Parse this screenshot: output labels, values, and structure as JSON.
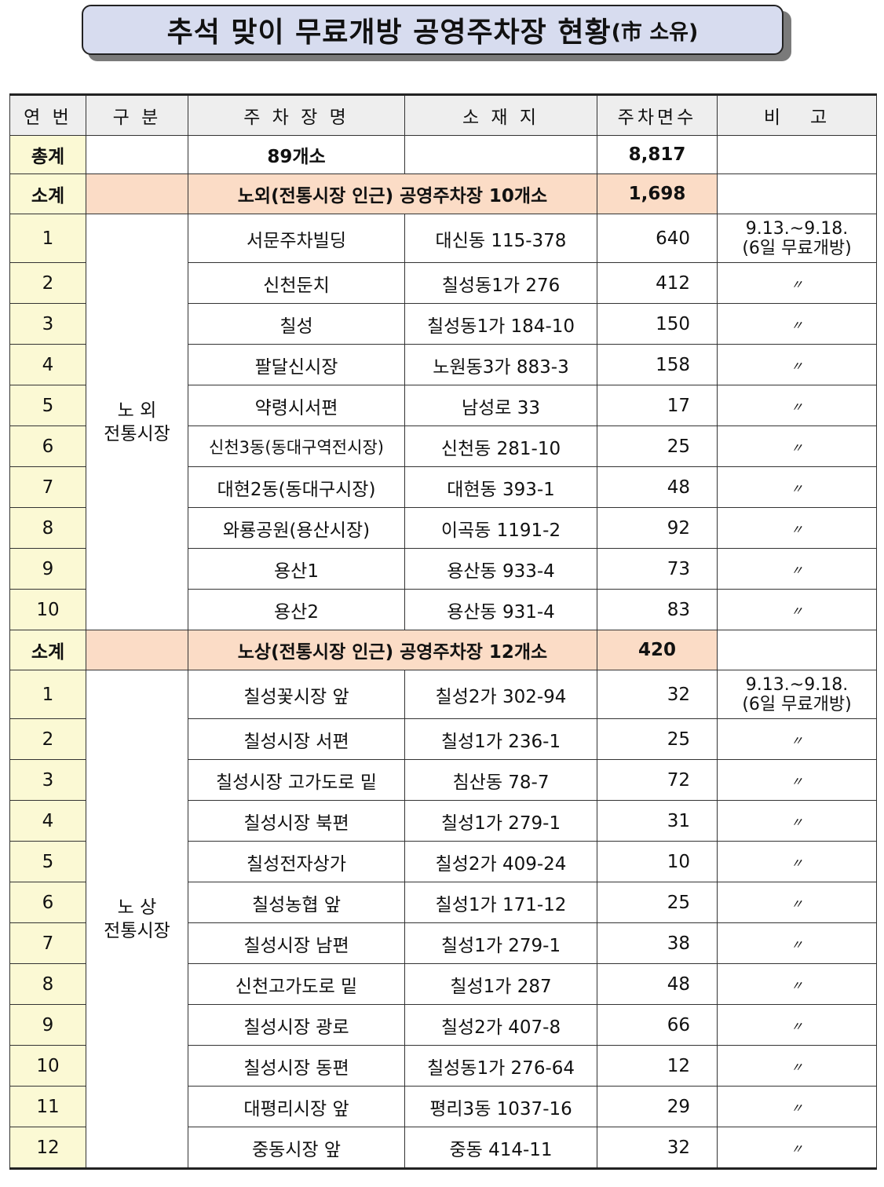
{
  "title": {
    "main": "추석 맞이 무료개방 공영주차장 현황",
    "sub": "(市 소유)"
  },
  "headers": [
    "연 번",
    "구 분",
    "주 차 장 명",
    "소 재 지",
    "주차면수",
    "비   고"
  ],
  "total": {
    "label": "총계",
    "name": "89개소",
    "spaces": "8,817"
  },
  "group1": {
    "subtotal_label": "소계",
    "subtotal_text": "노외(전통시장 인근) 공영주차장 10개소",
    "subtotal_spaces": "1,698",
    "category_line1": "노 외",
    "category_line2": "전통시장",
    "note_line1": "9.13.~9.18.",
    "note_line2": "(6일 무료개방)",
    "ditto": "〃",
    "rows": [
      {
        "no": "1",
        "name": "서문주차빌딩",
        "addr": "대신동 115-378",
        "spaces": "640"
      },
      {
        "no": "2",
        "name": "신천둔치",
        "addr": "칠성동1가 276",
        "spaces": "412"
      },
      {
        "no": "3",
        "name": "칠성",
        "addr": "칠성동1가 184-10",
        "spaces": "150"
      },
      {
        "no": "4",
        "name": "팔달신시장",
        "addr": "노원동3가 883-3",
        "spaces": "158"
      },
      {
        "no": "5",
        "name": "약령시서편",
        "addr": "남성로 33",
        "spaces": "17"
      },
      {
        "no": "6",
        "name": "신천3동(동대구역전시장)",
        "addr": "신천동 281-10",
        "spaces": "25"
      },
      {
        "no": "7",
        "name": "대현2동(동대구시장)",
        "addr": "대현동 393-1",
        "spaces": "48"
      },
      {
        "no": "8",
        "name": "와룡공원(용산시장)",
        "addr": "이곡동 1191-2",
        "spaces": "92"
      },
      {
        "no": "9",
        "name": "용산1",
        "addr": "용산동 933-4",
        "spaces": "73"
      },
      {
        "no": "10",
        "name": "용산2",
        "addr": "용산동 931-4",
        "spaces": "83"
      }
    ]
  },
  "group2": {
    "subtotal_label": "소계",
    "subtotal_text": "노상(전통시장 인근) 공영주차장 12개소",
    "subtotal_spaces": "420",
    "category_line1": "노 상",
    "category_line2": "전통시장",
    "note_line1": "9.13.~9.18.",
    "note_line2": "(6일 무료개방)",
    "ditto": "〃",
    "rows": [
      {
        "no": "1",
        "name": "칠성꽃시장 앞",
        "addr": "칠성2가 302-94",
        "spaces": "32"
      },
      {
        "no": "2",
        "name": "칠성시장 서편",
        "addr": "칠성1가 236-1",
        "spaces": "25"
      },
      {
        "no": "3",
        "name": "칠성시장 고가도로 밑",
        "addr": "침산동 78-7",
        "spaces": "72"
      },
      {
        "no": "4",
        "name": "칠성시장 북편",
        "addr": "칠성1가 279-1",
        "spaces": "31"
      },
      {
        "no": "5",
        "name": "칠성전자상가",
        "addr": "칠성2가 409-24",
        "spaces": "10"
      },
      {
        "no": "6",
        "name": "칠성농협 앞",
        "addr": "칠성1가 171-12",
        "spaces": "25"
      },
      {
        "no": "7",
        "name": "칠성시장 남편",
        "addr": "칠성1가 279-1",
        "spaces": "38"
      },
      {
        "no": "8",
        "name": "신천고가도로 밑",
        "addr": "칠성1가 287",
        "spaces": "48"
      },
      {
        "no": "9",
        "name": "칠성시장 광로",
        "addr": "칠성2가 407-8",
        "spaces": "66"
      },
      {
        "no": "10",
        "name": "칠성시장 동편",
        "addr": "칠성동1가 276-64",
        "spaces": "12"
      },
      {
        "no": "11",
        "name": "대평리시장 앞",
        "addr": "평리3동 1037-16",
        "spaces": "29"
      },
      {
        "no": "12",
        "name": "중동시장 앞",
        "addr": "중동 414-11",
        "spaces": "32"
      }
    ]
  }
}
